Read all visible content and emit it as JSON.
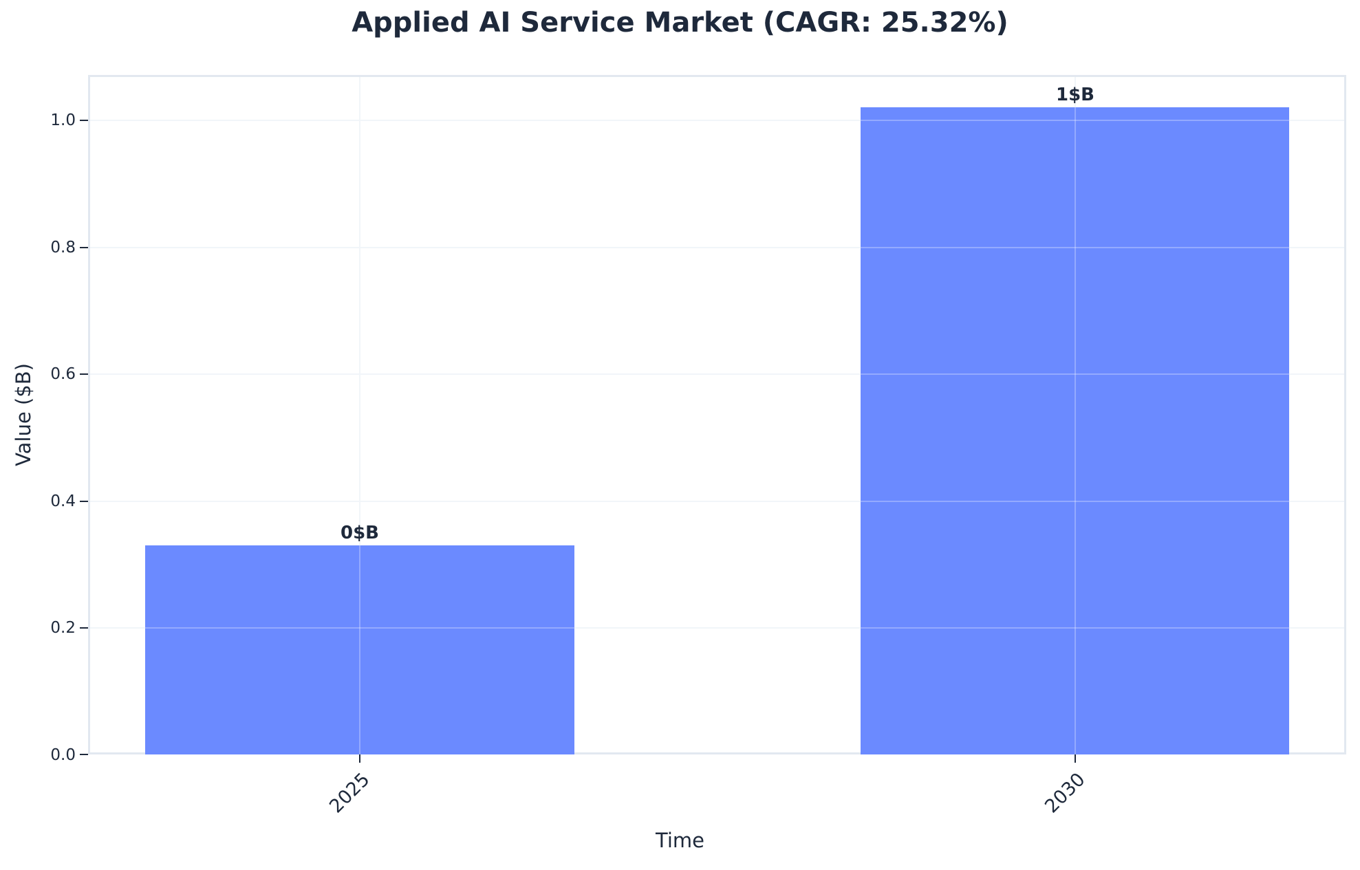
{
  "chart_data": {
    "type": "bar",
    "title": "Applied AI Service Market (CAGR: 25.32%)",
    "xlabel": "Time",
    "ylabel": "Value ($B)",
    "categories": [
      "2025",
      "2030"
    ],
    "values": [
      0.33,
      1.02
    ],
    "bar_labels": [
      "0$B",
      "1$B"
    ],
    "ylim": [
      0,
      1.07
    ],
    "yticks": [
      "0.0",
      "0.2",
      "0.4",
      "0.6",
      "0.8",
      "1.0"
    ],
    "grid": true,
    "legend": null,
    "bar_color": "#6b8aff",
    "text_color": "#1e293b",
    "spine_color": "#e2e8f0"
  }
}
